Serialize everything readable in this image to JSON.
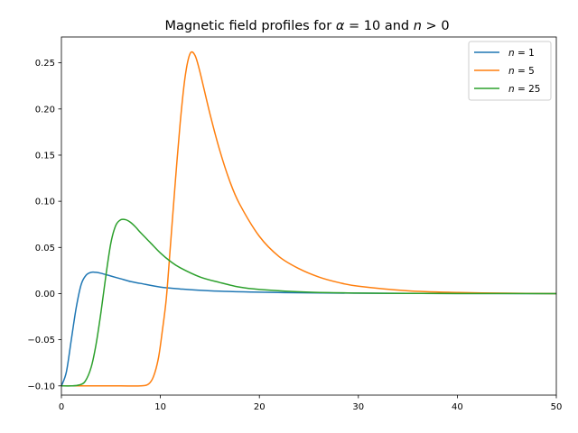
{
  "chart_data": {
    "type": "line",
    "title": "Magnetic field profiles for α = 10 and n > 0",
    "title_parts": {
      "prefix": "Magnetic field profiles for ",
      "alpha": "α",
      "eq1": " = 10 and ",
      "n": "n",
      "gt": " > 0"
    },
    "xlabel": "",
    "ylabel": "",
    "xlim": [
      0,
      50
    ],
    "ylim": [
      -0.11,
      0.278
    ],
    "xticks": [
      "0",
      "10",
      "20",
      "30",
      "40",
      "50"
    ],
    "xtick_values": [
      0,
      10,
      20,
      30,
      40,
      50
    ],
    "yticks": [
      "−0.10",
      "−0.05",
      "0.00",
      "0.05",
      "0.10",
      "0.15",
      "0.20",
      "0.25"
    ],
    "ytick_values": [
      -0.1,
      -0.05,
      0.0,
      0.05,
      0.1,
      0.15,
      0.2,
      0.25
    ],
    "grid": false,
    "legend_position": "top-right",
    "series": [
      {
        "name": "n = 1",
        "label_var": "n",
        "label_rest": " = 1",
        "color": "#1f77b4",
        "x": [
          0,
          0.5,
          1,
          1.5,
          2,
          2.5,
          3,
          3.5,
          4,
          5,
          6,
          7,
          8,
          10,
          12,
          15,
          20,
          25,
          30,
          40,
          50
        ],
        "y": [
          -0.1,
          -0.085,
          -0.05,
          -0.015,
          0.01,
          0.02,
          0.023,
          0.023,
          0.022,
          0.019,
          0.016,
          0.013,
          0.011,
          0.007,
          0.005,
          0.003,
          0.0015,
          0.0008,
          0.0004,
          0.0001,
          0.0
        ]
      },
      {
        "name": "n = 5",
        "label_var": "n",
        "label_rest": " = 5",
        "color": "#ff7f0e",
        "x": [
          0,
          2,
          4,
          6,
          8,
          8.8,
          9.3,
          9.8,
          10.2,
          10.6,
          11,
          11.5,
          12,
          12.5,
          13,
          13.5,
          14,
          15,
          16,
          17,
          18,
          20,
          22,
          24,
          26,
          28,
          30,
          35,
          40,
          45,
          50
        ],
        "y": [
          -0.1,
          -0.1,
          -0.1,
          -0.1,
          -0.1,
          -0.098,
          -0.09,
          -0.07,
          -0.04,
          -0.005,
          0.05,
          0.12,
          0.185,
          0.235,
          0.26,
          0.258,
          0.24,
          0.195,
          0.155,
          0.122,
          0.097,
          0.062,
          0.04,
          0.027,
          0.018,
          0.012,
          0.008,
          0.003,
          0.0012,
          0.0004,
          0.0
        ]
      },
      {
        "name": "n = 25",
        "label_var": "n",
        "label_rest": " = 25",
        "color": "#2ca02c",
        "x": [
          0,
          1,
          1.8,
          2.4,
          3,
          3.5,
          4,
          4.5,
          5,
          5.5,
          6,
          6.5,
          7,
          7.5,
          8,
          9,
          10,
          11,
          12,
          14,
          16,
          18,
          20,
          25,
          30,
          35,
          40,
          50
        ],
        "y": [
          -0.1,
          -0.1,
          -0.099,
          -0.095,
          -0.08,
          -0.055,
          -0.02,
          0.02,
          0.055,
          0.074,
          0.08,
          0.08,
          0.077,
          0.072,
          0.066,
          0.055,
          0.044,
          0.035,
          0.028,
          0.018,
          0.012,
          0.007,
          0.0045,
          0.0015,
          0.0006,
          0.0002,
          0.0001,
          0.0
        ]
      }
    ]
  }
}
